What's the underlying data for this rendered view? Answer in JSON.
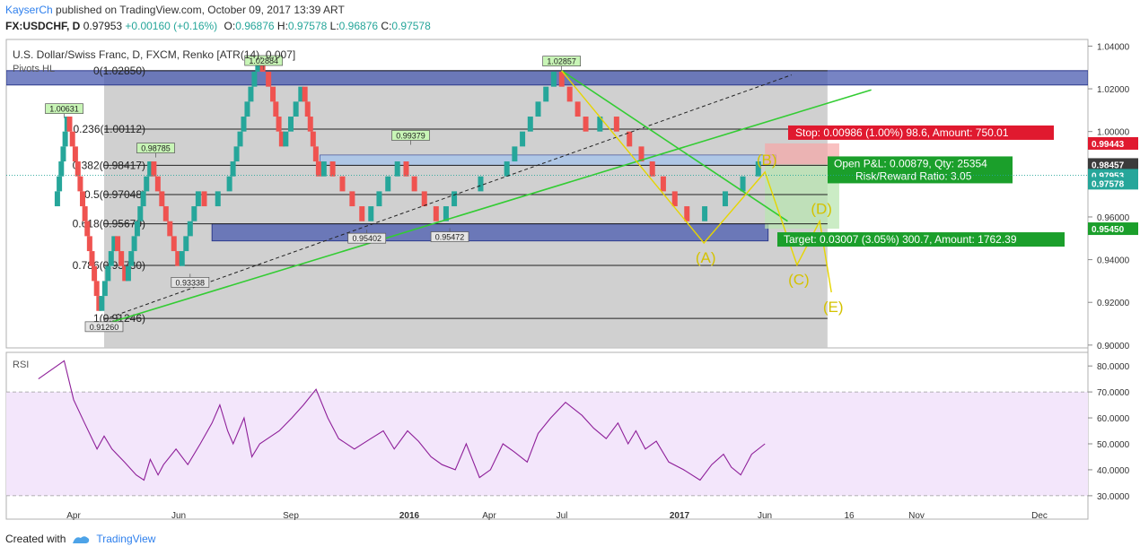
{
  "header": {
    "author": "KayserCh",
    "published_text": "published on TradingView.com, October 09, 2017 13:39 ART",
    "symbol": "FX:USDCHF, D",
    "last": "0.97953",
    "change": "+0.00160 (+0.16%)",
    "o_label": "O:",
    "o_value": "0.96876",
    "h_label": "H:",
    "h_value": "0.97578",
    "l_label": "L:",
    "l_value": "0.96876",
    "c_label": "C:",
    "c_value": "0.97578"
  },
  "chart_data": [
    {
      "type": "line",
      "title": "U.S. Dollar/Swiss Franc, D, FXCM, Renko [ATR(14), 0.007]",
      "indicator_label": "Pivots HL",
      "x_ticks": [
        "Apr",
        "Jun",
        "Sep",
        "2016",
        "Apr",
        "Jul",
        "2017",
        "Jun",
        "16",
        "Nov",
        "Dec"
      ],
      "y_ticks": [
        "1.04000",
        "1.02000",
        "1.00000",
        "0.98000",
        "0.96000",
        "0.94000",
        "0.92000",
        "0.90000"
      ],
      "ylim": [
        0.8995,
        1.0415
      ],
      "close_path": [
        {
          "date": "2015-03-10",
          "close": 0.965
        },
        {
          "date": "2015-03-25",
          "close": 1.005
        },
        {
          "date": "2015-04-05",
          "close": 0.986
        },
        {
          "date": "2015-05-05",
          "close": 0.915
        },
        {
          "date": "2015-05-25",
          "close": 0.95
        },
        {
          "date": "2015-06-08",
          "close": 0.928
        },
        {
          "date": "2015-07-01",
          "close": 0.968
        },
        {
          "date": "2015-07-10",
          "close": 0.984
        },
        {
          "date": "2015-08-15",
          "close": 0.936
        },
        {
          "date": "2015-09-10",
          "close": 0.97
        },
        {
          "date": "2015-09-20",
          "close": 0.962
        },
        {
          "date": "2015-10-15",
          "close": 0.962
        },
        {
          "date": "2015-11-25",
          "close": 1.024
        },
        {
          "date": "2015-12-10",
          "close": 1.013
        },
        {
          "date": "2015-12-25",
          "close": 0.987
        },
        {
          "date": "2016-01-20",
          "close": 1.018
        },
        {
          "date": "2016-02-10",
          "close": 0.978
        },
        {
          "date": "2016-02-20",
          "close": 0.982
        },
        {
          "date": "2016-04-10",
          "close": 0.957
        },
        {
          "date": "2016-05-01",
          "close": 0.972
        },
        {
          "date": "2016-05-25",
          "close": 0.989
        },
        {
          "date": "2016-06-15",
          "close": 0.973
        },
        {
          "date": "2016-07-15",
          "close": 0.96
        },
        {
          "date": "2016-08-05",
          "close": 0.971
        },
        {
          "date": "2016-10-01",
          "close": 0.976
        },
        {
          "date": "2016-12-10",
          "close": 1.024
        },
        {
          "date": "2017-01-20",
          "close": 0.998
        },
        {
          "date": "2017-02-15",
          "close": 1.003
        },
        {
          "date": "2017-03-20",
          "close": 0.99
        },
        {
          "date": "2017-05-01",
          "close": 0.97
        },
        {
          "date": "2017-06-01",
          "close": 0.954
        },
        {
          "date": "2017-07-01",
          "close": 0.957
        },
        {
          "date": "2017-08-15",
          "close": 0.969
        },
        {
          "date": "2017-09-01",
          "close": 0.979
        }
      ],
      "pivot_labels": [
        {
          "date": "2015-03-20",
          "label": "1.00631",
          "y": 1.00631,
          "pos": "high"
        },
        {
          "date": "2015-05-10",
          "label": "0.91260",
          "y": 0.9126,
          "pos": "low"
        },
        {
          "date": "2015-07-15",
          "label": "0.98785",
          "y": 0.98785,
          "pos": "high"
        },
        {
          "date": "2015-08-28",
          "label": "0.93338",
          "y": 0.93338,
          "pos": "low"
        },
        {
          "date": "2015-11-30",
          "label": "1.02884",
          "y": 1.02884,
          "pos": "high"
        },
        {
          "date": "2016-04-10",
          "label": "0.95402",
          "y": 0.95402,
          "pos": "low"
        },
        {
          "date": "2016-06-05",
          "label": "0.99379",
          "y": 0.99379,
          "pos": "high"
        },
        {
          "date": "2016-07-25",
          "label": "0.95472",
          "y": 0.95472,
          "pos": "low"
        },
        {
          "date": "2016-12-15",
          "label": "1.02857",
          "y": 1.02857,
          "pos": "high"
        }
      ],
      "fib_levels": [
        {
          "label": "0(1.02850)",
          "value": 1.0285
        },
        {
          "label": "0.236(1.00112)",
          "value": 1.00112
        },
        {
          "label": "0.382(0.98417)",
          "value": 0.98417
        },
        {
          "label": "0.5(0.97048)",
          "value": 0.97048
        },
        {
          "label": "0.618(0.95679)",
          "value": 0.95679
        },
        {
          "label": "0.786(0.93730)",
          "value": 0.9373
        },
        {
          "label": "1(0.91246)",
          "value": 0.91246
        }
      ],
      "zones": [
        {
          "from": 1.0218,
          "to": 1.0285
        },
        {
          "from": 0.98417,
          "to": 0.989
        },
        {
          "from": 0.9488,
          "to": 0.95679
        }
      ],
      "trendlines": [
        {
          "style": "solid",
          "color": "#33cc33",
          "from": {
            "date": "2015-04-20",
            "y": 0.9075
          },
          "to": {
            "date": "2018-01-15",
            "y": 1.0195
          }
        },
        {
          "style": "dashed",
          "color": "#222222",
          "from": {
            "date": "2015-05-10",
            "y": 0.912
          },
          "to": {
            "date": "2017-10-05",
            "y": 1.0265
          }
        },
        {
          "style": "solid",
          "color": "#33cc33",
          "from": {
            "date": "2016-12-15",
            "y": 1.0285
          },
          "to": {
            "date": "2017-09-30",
            "y": 0.958
          }
        }
      ],
      "elliott_path": [
        {
          "label": "",
          "date": "2016-12-15",
          "y": 1.0285
        },
        {
          "label": "(A)",
          "date": "2017-06-15",
          "y": 0.9478
        },
        {
          "label": "(B)",
          "date": "2017-09-01",
          "y": 0.981
        },
        {
          "label": "(C)",
          "date": "2017-10-12",
          "y": 0.9375
        },
        {
          "label": "(D)",
          "date": "2017-11-10",
          "y": 0.958
        },
        {
          "label": "(E)",
          "date": "2017-11-25",
          "y": 0.9247
        }
      ],
      "position": {
        "entry": 0.98457,
        "stop": 0.99443,
        "target": 0.9545,
        "stop_text": "Stop: 0.00986 (1.00%) 98.6, Amount: 750.01",
        "pnl_text": "Open P&L: 0.00879, Qty: 25354",
        "rr_text": "Risk/Reward Ratio: 3.05",
        "target_text": "Target: 0.03007 (3.05%) 300.7, Amount: 1762.39"
      },
      "price_tags": [
        {
          "label": "0.99443",
          "value": 0.99443,
          "color": "#e0192f"
        },
        {
          "label": "0.98457",
          "value": 0.98457,
          "color": "#3b3b3b"
        },
        {
          "label": "0.97953",
          "value": 0.97953,
          "color": "#26a69a"
        },
        {
          "label": "0.97578",
          "value": 0.97578,
          "color": "#26a69a"
        },
        {
          "label": "0.95450",
          "value": 0.9545,
          "color": "#1b9f2b"
        }
      ],
      "colors": {
        "up": "#26a69a",
        "down": "#ef5350",
        "fib_zone": "#c8c8c8",
        "zone": "#4a5bb0",
        "ellipse": "#e6d500"
      }
    },
    {
      "type": "line",
      "title": "RSI",
      "y_ticks": [
        "80.0000",
        "70.0000",
        "60.0000",
        "50.0000",
        "40.0000",
        "30.0000"
      ],
      "ylim": [
        25.7,
        83.3
      ],
      "bands": [
        30,
        70
      ],
      "series": [
        {
          "values": [
            {
              "date": "2015-02-15",
              "rsi": 75
            },
            {
              "date": "2015-03-20",
              "rsi": 82
            },
            {
              "date": "2015-04-01",
              "rsi": 67
            },
            {
              "date": "2015-04-15",
              "rsi": 58
            },
            {
              "date": "2015-05-01",
              "rsi": 48
            },
            {
              "date": "2015-05-10",
              "rsi": 53
            },
            {
              "date": "2015-05-20",
              "rsi": 48
            },
            {
              "date": "2015-06-05",
              "rsi": 43
            },
            {
              "date": "2015-06-20",
              "rsi": 38
            },
            {
              "date": "2015-06-30",
              "rsi": 36
            },
            {
              "date": "2015-07-08",
              "rsi": 44
            },
            {
              "date": "2015-07-18",
              "rsi": 38
            },
            {
              "date": "2015-07-25",
              "rsi": 42
            },
            {
              "date": "2015-08-10",
              "rsi": 48
            },
            {
              "date": "2015-08-25",
              "rsi": 42
            },
            {
              "date": "2015-09-10",
              "rsi": 50
            },
            {
              "date": "2015-09-25",
              "rsi": 58
            },
            {
              "date": "2015-10-05",
              "rsi": 65
            },
            {
              "date": "2015-10-15",
              "rsi": 55
            },
            {
              "date": "2015-10-22",
              "rsi": 50
            },
            {
              "date": "2015-11-05",
              "rsi": 60
            },
            {
              "date": "2015-11-15",
              "rsi": 45
            },
            {
              "date": "2015-11-25",
              "rsi": 50
            },
            {
              "date": "2015-12-05",
              "rsi": 52
            },
            {
              "date": "2015-12-20",
              "rsi": 55
            },
            {
              "date": "2016-01-05",
              "rsi": 60
            },
            {
              "date": "2016-01-20",
              "rsi": 65
            },
            {
              "date": "2016-02-05",
              "rsi": 71
            },
            {
              "date": "2016-02-20",
              "rsi": 60
            },
            {
              "date": "2016-03-05",
              "rsi": 52
            },
            {
              "date": "2016-03-25",
              "rsi": 48
            },
            {
              "date": "2016-04-15",
              "rsi": 52
            },
            {
              "date": "2016-05-01",
              "rsi": 55
            },
            {
              "date": "2016-05-15",
              "rsi": 48
            },
            {
              "date": "2016-06-01",
              "rsi": 55
            },
            {
              "date": "2016-06-15",
              "rsi": 51
            },
            {
              "date": "2016-07-01",
              "rsi": 45
            },
            {
              "date": "2016-07-15",
              "rsi": 42
            },
            {
              "date": "2016-08-01",
              "rsi": 40
            },
            {
              "date": "2016-08-15",
              "rsi": 50
            },
            {
              "date": "2016-09-01",
              "rsi": 37
            },
            {
              "date": "2016-09-15",
              "rsi": 40
            },
            {
              "date": "2016-10-01",
              "rsi": 50
            },
            {
              "date": "2016-10-15",
              "rsi": 47
            },
            {
              "date": "2016-11-01",
              "rsi": 43
            },
            {
              "date": "2016-11-15",
              "rsi": 54
            },
            {
              "date": "2016-12-01",
              "rsi": 60
            },
            {
              "date": "2016-12-20",
              "rsi": 66
            },
            {
              "date": "2017-01-10",
              "rsi": 61
            },
            {
              "date": "2017-01-25",
              "rsi": 56
            },
            {
              "date": "2017-02-10",
              "rsi": 52
            },
            {
              "date": "2017-02-25",
              "rsi": 58
            },
            {
              "date": "2017-03-10",
              "rsi": 50
            },
            {
              "date": "2017-03-20",
              "rsi": 55
            },
            {
              "date": "2017-04-01",
              "rsi": 48
            },
            {
              "date": "2017-04-15",
              "rsi": 51
            },
            {
              "date": "2017-05-01",
              "rsi": 43
            },
            {
              "date": "2017-05-20",
              "rsi": 40
            },
            {
              "date": "2017-06-10",
              "rsi": 36
            },
            {
              "date": "2017-06-25",
              "rsi": 42
            },
            {
              "date": "2017-07-10",
              "rsi": 46
            },
            {
              "date": "2017-07-20",
              "rsi": 41
            },
            {
              "date": "2017-08-01",
              "rsi": 38
            },
            {
              "date": "2017-08-15",
              "rsi": 46
            },
            {
              "date": "2017-09-01",
              "rsi": 50
            }
          ]
        }
      ]
    }
  ],
  "footer": {
    "created_with": "Created with",
    "brand": "TradingView"
  }
}
